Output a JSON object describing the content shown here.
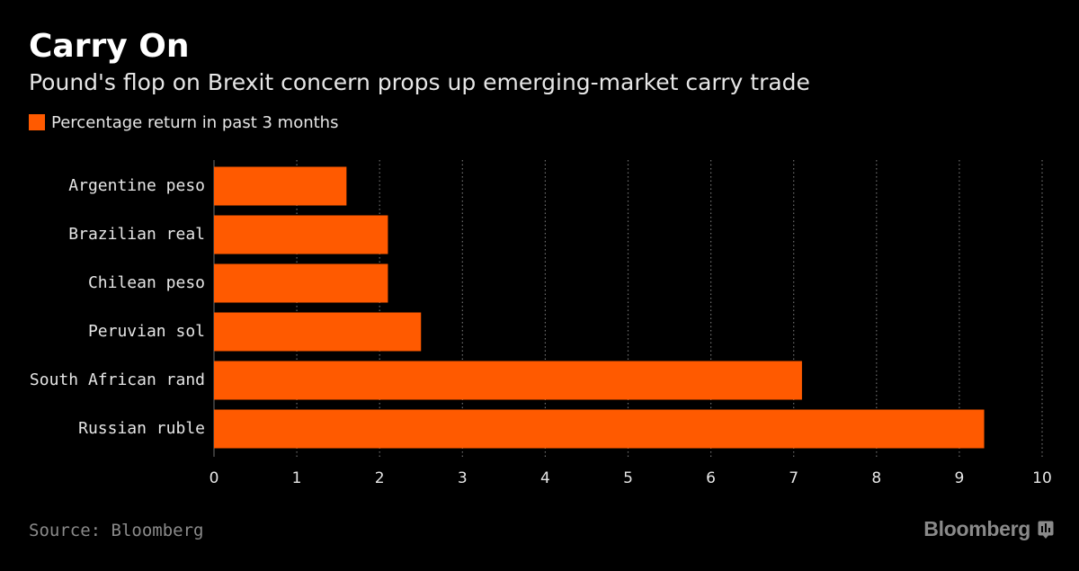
{
  "header": {
    "title": "Carry On",
    "subtitle": "Pound's flop on Brexit concern props up emerging-market carry trade"
  },
  "legend": {
    "label": "Percentage return in past 3 months"
  },
  "footer": {
    "source": "Source: Bloomberg",
    "brand": "Bloomberg",
    "brand_icon": "bloomberg-terminal-icon"
  },
  "colors": {
    "background": "#000000",
    "bar": "#ff5a00",
    "grid": "#6e6e6e",
    "text": "#e6e6e6",
    "muted": "#8a8a8a"
  },
  "chart_data": {
    "type": "bar",
    "orientation": "horizontal",
    "categories": [
      "Argentine peso",
      "Brazilian real",
      "Chilean peso",
      "Peruvian sol",
      "South African rand",
      "Russian ruble"
    ],
    "series": [
      {
        "name": "Percentage return in past 3 months",
        "values": [
          1.6,
          2.1,
          2.1,
          2.5,
          7.1,
          9.3
        ]
      }
    ],
    "xlim": [
      0,
      10
    ],
    "xticks": [
      0,
      1,
      2,
      3,
      4,
      5,
      6,
      7,
      8,
      9,
      10
    ],
    "grid": "vertical-dotted",
    "legend_position": "top-left"
  }
}
